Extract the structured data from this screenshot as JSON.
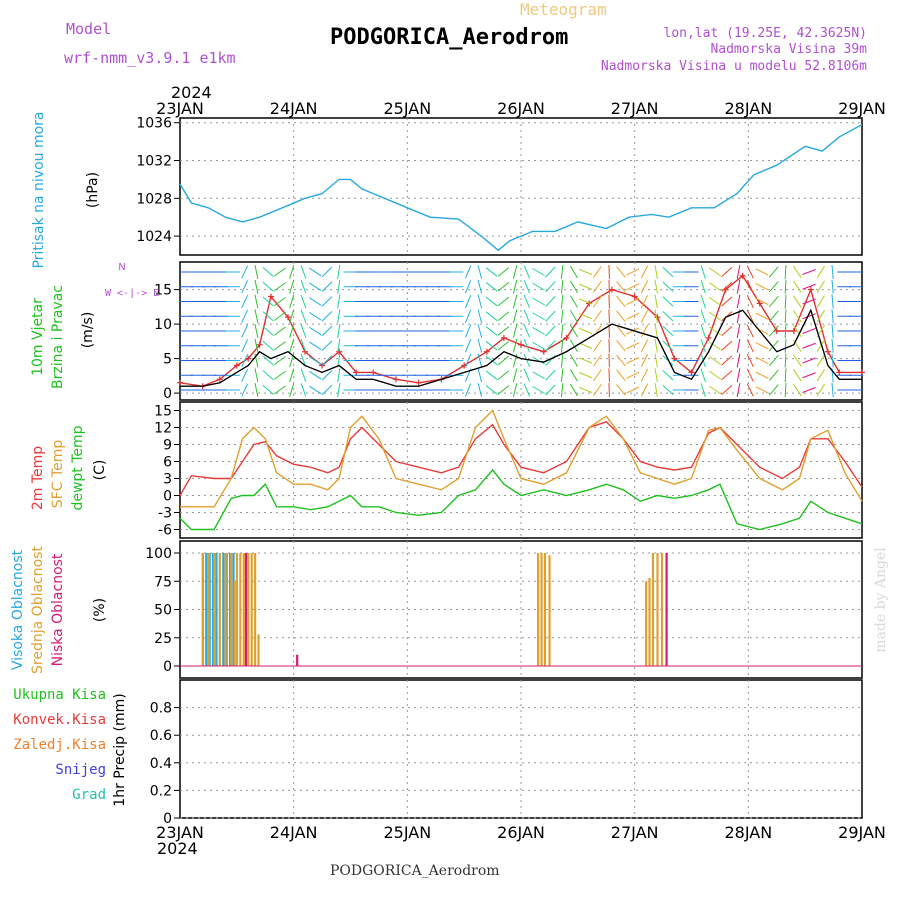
{
  "header": {
    "model_label": "Model",
    "model_name": "wrf-nmm_v3.9.1  e1km",
    "kind": "Meteogram",
    "station": "PODGORICA_Aerodrom",
    "lonlat": "lon,lat (19.25E, 42.3625N)",
    "height": "Nadmorska Visina 39m",
    "model_height": "Nadmorska Visina u modelu 52.8106m"
  },
  "footer": {
    "station": "PODGORICA_Aerodrom",
    "credit": "made by Angel"
  },
  "time_axis": {
    "year": "2024",
    "days": [
      "23JAN",
      "24JAN",
      "25JAN",
      "26JAN",
      "27JAN",
      "28JAN",
      "29JAN"
    ]
  },
  "colors": {
    "pressure": "#29a8e0",
    "t2m": "#e83a3a",
    "sfc": "#e0a030",
    "dewpt": "#20c020",
    "wind_speed": "#000000",
    "gust": "#e03030",
    "high_cloud": "#29a8e0",
    "mid_cloud": "#e0a030",
    "low_cloud": "#d01c78",
    "precip_total": "#20c020",
    "precip_conv": "#e83a3a",
    "precip_frz": "#f08030",
    "snow": "#4040e0",
    "hail": "#20c0b0",
    "model_text": "#b050d0"
  },
  "chart_data": [
    {
      "type": "line",
      "name": "pressure",
      "ylabel_left": "Pritisak na nivou mora",
      "ylabel_unit": "(hPa)",
      "xlim": [
        0,
        6
      ],
      "ylim": [
        1022,
        1036.5
      ],
      "yticks": [
        1024,
        1028,
        1032,
        1036
      ],
      "series": [
        {
          "key": "pressure",
          "x": [
            0,
            0.1,
            0.25,
            0.4,
            0.55,
            0.7,
            0.9,
            1.1,
            1.25,
            1.4,
            1.5,
            1.6,
            1.8,
            2.0,
            2.2,
            2.45,
            2.65,
            2.8,
            2.9,
            3.1,
            3.3,
            3.5,
            3.75,
            3.95,
            4.15,
            4.3,
            4.5,
            4.7,
            4.9,
            5.05,
            5.25,
            5.5,
            5.65,
            5.8,
            6.0
          ],
          "y": [
            1029.5,
            1027.5,
            1027.0,
            1026.0,
            1025.5,
            1026.0,
            1027.0,
            1028.0,
            1028.5,
            1030.0,
            1030.0,
            1029.0,
            1028.0,
            1027.0,
            1026.0,
            1025.8,
            1024.0,
            1022.5,
            1023.5,
            1024.5,
            1024.5,
            1025.5,
            1024.8,
            1026.0,
            1026.3,
            1026.0,
            1027.0,
            1027.0,
            1028.5,
            1030.5,
            1031.5,
            1033.5,
            1033.0,
            1034.5,
            1035.8
          ]
        }
      ]
    },
    {
      "type": "line",
      "name": "wind",
      "ylabel_left": [
        "10m Vjetar",
        "Brzina i Pravac"
      ],
      "ylabel_unit": "(m/s)",
      "compass": "N",
      "xlim": [
        0,
        6
      ],
      "ylim": [
        -1,
        19
      ],
      "yticks": [
        0,
        5,
        10,
        15
      ],
      "series": [
        {
          "key": "wind_speed",
          "x": [
            0,
            0.2,
            0.35,
            0.5,
            0.6,
            0.7,
            0.8,
            0.95,
            1.1,
            1.25,
            1.4,
            1.55,
            1.7,
            1.9,
            2.1,
            2.3,
            2.5,
            2.7,
            2.85,
            3.0,
            3.2,
            3.4,
            3.6,
            3.8,
            4.0,
            4.2,
            4.35,
            4.5,
            4.65,
            4.8,
            4.95,
            5.1,
            5.25,
            5.4,
            5.55,
            5.7,
            5.8,
            6.0
          ],
          "y": [
            1,
            1,
            1.5,
            3,
            4,
            6,
            5,
            6,
            4,
            3,
            4,
            2,
            2,
            1,
            1,
            2,
            3,
            4,
            6,
            5,
            4.5,
            6,
            8,
            10,
            9,
            8,
            3,
            2,
            6,
            11,
            12,
            9,
            6,
            7,
            12,
            4,
            2,
            2
          ]
        },
        {
          "key": "gust",
          "x": [
            0,
            0.2,
            0.35,
            0.5,
            0.6,
            0.7,
            0.8,
            0.95,
            1.1,
            1.25,
            1.4,
            1.55,
            1.7,
            1.9,
            2.1,
            2.3,
            2.5,
            2.7,
            2.85,
            3.0,
            3.2,
            3.4,
            3.6,
            3.8,
            4.0,
            4.2,
            4.35,
            4.5,
            4.65,
            4.8,
            4.95,
            5.1,
            5.25,
            5.4,
            5.55,
            5.7,
            5.8,
            6.0
          ],
          "y": [
            1.5,
            1,
            2,
            4,
            5,
            7,
            14,
            11,
            6,
            4,
            6,
            3,
            3,
            2,
            1.5,
            2,
            4,
            6,
            8,
            7,
            6,
            8,
            13,
            15,
            14,
            11,
            5,
            3,
            8,
            15,
            17,
            13,
            9,
            9,
            15,
            6,
            3,
            3
          ]
        }
      ]
    },
    {
      "type": "line",
      "name": "temperature",
      "ylabel_left": [
        "2m Temp",
        "SFC Temp",
        "dewpt Temp"
      ],
      "ylabel_unit": "(C)",
      "xlim": [
        0,
        6
      ],
      "ylim": [
        -7.5,
        16.5
      ],
      "yticks": [
        -6,
        -3,
        0,
        3,
        6,
        9,
        12,
        15
      ],
      "series": [
        {
          "key": "t2m",
          "x": [
            0,
            0.1,
            0.3,
            0.45,
            0.55,
            0.65,
            0.75,
            0.85,
            1.0,
            1.15,
            1.3,
            1.4,
            1.5,
            1.6,
            1.75,
            1.9,
            2.1,
            2.3,
            2.45,
            2.6,
            2.75,
            2.85,
            3.0,
            3.2,
            3.4,
            3.6,
            3.75,
            3.9,
            4.05,
            4.2,
            4.35,
            4.5,
            4.65,
            4.75,
            4.9,
            5.1,
            5.3,
            5.45,
            5.55,
            5.7,
            5.85,
            6.0
          ],
          "y": [
            0,
            3.5,
            3,
            3,
            6,
            9,
            9.5,
            7,
            5.5,
            5,
            4,
            5,
            10,
            12,
            9,
            6,
            5,
            4,
            5,
            10,
            12.5,
            9,
            5,
            4,
            6,
            12,
            13,
            10,
            6,
            5,
            4.5,
            5,
            11,
            12,
            9,
            5,
            3,
            5,
            10,
            10,
            6,
            1.5
          ]
        },
        {
          "key": "sfc",
          "x": [
            0,
            0.1,
            0.3,
            0.45,
            0.55,
            0.65,
            0.75,
            0.85,
            1.0,
            1.15,
            1.3,
            1.4,
            1.5,
            1.6,
            1.75,
            1.9,
            2.1,
            2.3,
            2.45,
            2.6,
            2.75,
            2.85,
            3.0,
            3.2,
            3.4,
            3.6,
            3.75,
            3.9,
            4.05,
            4.2,
            4.35,
            4.5,
            4.65,
            4.75,
            4.9,
            5.1,
            5.3,
            5.45,
            5.55,
            5.7,
            5.85,
            6.0
          ],
          "y": [
            -2,
            -2,
            -2,
            3,
            10,
            12,
            10,
            4,
            2,
            2,
            1,
            3,
            12,
            14,
            10,
            3,
            2,
            1,
            3,
            12,
            15,
            10,
            3,
            2,
            4,
            12,
            14,
            10,
            4,
            3,
            2,
            3,
            11.5,
            12,
            8,
            3,
            1,
            3,
            10,
            11.5,
            4,
            -1
          ]
        },
        {
          "key": "dewpt",
          "x": [
            0,
            0.1,
            0.3,
            0.45,
            0.55,
            0.65,
            0.75,
            0.85,
            1.0,
            1.15,
            1.3,
            1.4,
            1.5,
            1.6,
            1.75,
            1.9,
            2.1,
            2.3,
            2.45,
            2.6,
            2.75,
            2.85,
            3.0,
            3.2,
            3.4,
            3.6,
            3.75,
            3.9,
            4.05,
            4.2,
            4.35,
            4.5,
            4.65,
            4.75,
            4.9,
            5.1,
            5.3,
            5.45,
            5.55,
            5.7,
            5.85,
            6.0
          ],
          "y": [
            -4,
            -6,
            -6,
            -0.5,
            0,
            0,
            2,
            -2,
            -2,
            -2.5,
            -2,
            -1,
            0,
            -2,
            -2,
            -3,
            -3.5,
            -3,
            0,
            1,
            4.5,
            2,
            0,
            1,
            0,
            1,
            2,
            1,
            -1,
            0,
            -0.5,
            0,
            1,
            2,
            -5,
            -6,
            -5,
            -4,
            -1,
            -3,
            -4,
            -5
          ]
        }
      ]
    },
    {
      "type": "bar",
      "name": "cloudiness",
      "ylabel_left": [
        "Visoka Oblacnost",
        "Srednja Oblacnost",
        "Niska Oblacnost"
      ],
      "ylabel_unit": "(%)",
      "xlim": [
        0,
        6
      ],
      "ylim": [
        0,
        100
      ],
      "yticks": [
        0,
        25,
        50,
        75,
        100
      ],
      "series": [
        {
          "key": "high_cloud",
          "x": [
            0.2,
            0.23,
            0.26,
            0.29,
            0.32,
            0.35,
            0.38,
            0.41,
            0.44,
            0.47
          ],
          "values": [
            100,
            100,
            100,
            100,
            100,
            100,
            100,
            100,
            100,
            100
          ]
        },
        {
          "key": "mid_cloud",
          "x": [
            0.2,
            0.25,
            0.3,
            0.35,
            0.4,
            0.45,
            0.48,
            0.5,
            0.53,
            0.56,
            0.6,
            0.63,
            0.66,
            0.69,
            3.15,
            3.18,
            3.21,
            3.25,
            4.1,
            4.13,
            4.16,
            4.2,
            4.24
          ],
          "values": [
            100,
            100,
            100,
            100,
            100,
            100,
            75,
            100,
            100,
            100,
            100,
            100,
            100,
            28,
            100,
            100,
            100,
            98,
            75,
            78,
            100,
            100,
            100
          ]
        },
        {
          "key": "low_cloud",
          "x": [
            0.58,
            1.03,
            4.28
          ],
          "values": [
            100,
            10,
            100
          ]
        }
      ]
    },
    {
      "type": "bar",
      "name": "precipitation",
      "ylabel_left": [
        "Ukupna Kisa",
        "Konvek.Kisa",
        "Zaledj.Kisa",
        "Snijeg",
        "Grad"
      ],
      "ylabel_unit": "1hr Precip (mm)",
      "xlim": [
        0,
        6
      ],
      "ylim": [
        0,
        1
      ],
      "yticks": [
        0,
        0.2,
        0.4,
        0.6,
        0.8
      ],
      "series": [
        {
          "key": "precip_total",
          "x": [],
          "values": []
        }
      ]
    }
  ]
}
